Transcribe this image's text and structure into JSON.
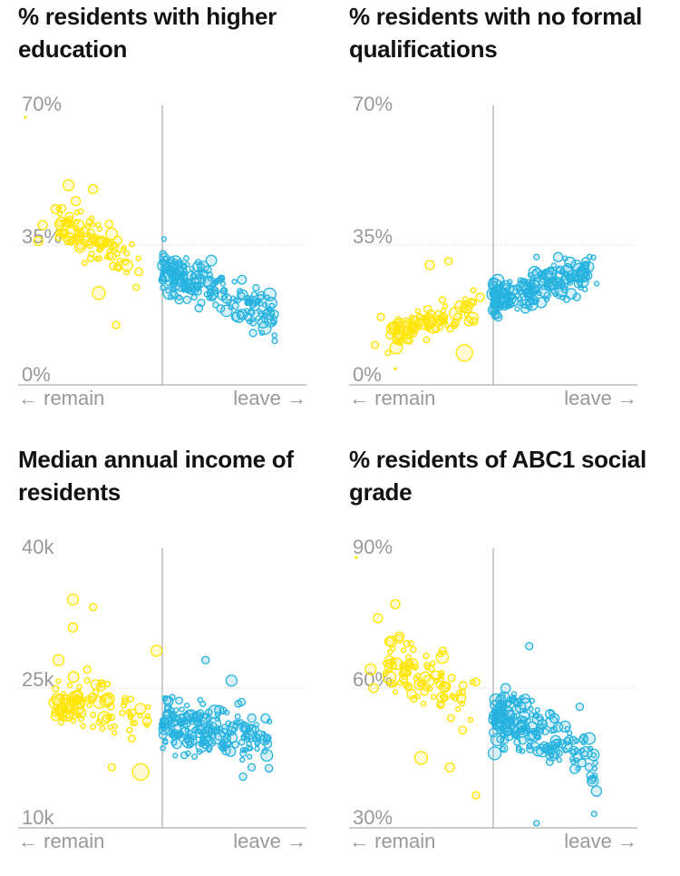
{
  "colors": {
    "remain": "#ffe500",
    "leave": "#27b3e0",
    "axis": "#999999",
    "grid": "#cfcfcf",
    "title": "#121212",
    "label": "#999999"
  },
  "axis_labels": {
    "left_arrow": "←",
    "remain": "remain",
    "leave": "leave",
    "right_arrow": "→"
  },
  "chart_data": [
    {
      "type": "scatter",
      "title": "% residents with higher education",
      "xlabel": "remain ← → leave",
      "ylabel": "% residents with higher education",
      "ylim": [
        0,
        70
      ],
      "yticks": [
        {
          "value": 70,
          "label": "70%"
        },
        {
          "value": 35,
          "label": "35%"
        },
        {
          "value": 0,
          "label": "0%"
        }
      ],
      "divider_x": 0,
      "xlim": [
        -1,
        1
      ],
      "seed": 11,
      "trend": {
        "slope": -15,
        "intercept": 29,
        "spread": 4.5
      },
      "clusters": [
        {
          "series": "remain",
          "count": 95,
          "x_range": [
            -0.72,
            -0.02
          ],
          "x_skew": 0.55
        },
        {
          "series": "leave",
          "count": 210,
          "x_range": [
            0.0,
            0.78
          ],
          "x_skew": 1.6
        }
      ],
      "outliers": [
        {
          "series": "remain",
          "x": -0.95,
          "y": 67,
          "size": 1
        },
        {
          "series": "remain",
          "x": -0.65,
          "y": 50,
          "size": 6
        },
        {
          "series": "remain",
          "x": -0.48,
          "y": 49,
          "size": 5
        },
        {
          "series": "remain",
          "x": -0.6,
          "y": 46,
          "size": 5
        },
        {
          "series": "remain",
          "x": -0.74,
          "y": 44,
          "size": 5
        },
        {
          "series": "remain",
          "x": -0.83,
          "y": 40,
          "size": 5
        },
        {
          "series": "remain",
          "x": -0.86,
          "y": 36,
          "size": 5
        },
        {
          "series": "remain",
          "x": -0.42,
          "y": 36,
          "size": 4
        },
        {
          "series": "remain",
          "x": -0.44,
          "y": 23,
          "size": 7
        },
        {
          "series": "remain",
          "x": -0.32,
          "y": 15,
          "size": 4
        },
        {
          "series": "leave",
          "x": 0.05,
          "y": 23,
          "size": 7
        },
        {
          "series": "leave",
          "x": 0.63,
          "y": 13,
          "size": 4
        },
        {
          "series": "leave",
          "x": 0.78,
          "y": 11,
          "size": 3
        }
      ]
    },
    {
      "type": "scatter",
      "title": "% residents with no formal qualifications",
      "xlabel": "remain ← → leave",
      "ylabel": "% residents with no formal qualifications",
      "ylim": [
        0,
        70
      ],
      "yticks": [
        {
          "value": 70,
          "label": "70%"
        },
        {
          "value": 35,
          "label": "35%"
        },
        {
          "value": 0,
          "label": "0%"
        }
      ],
      "divider_x": 0,
      "xlim": [
        -1,
        1
      ],
      "seed": 23,
      "trend": {
        "slope": 11,
        "intercept": 21,
        "spread": 3.5
      },
      "clusters": [
        {
          "series": "remain",
          "count": 95,
          "x_range": [
            -0.72,
            -0.02
          ],
          "x_skew": 0.55
        },
        {
          "series": "leave",
          "count": 210,
          "x_range": [
            0.0,
            0.72
          ],
          "x_skew": 1.5
        }
      ],
      "outliers": [
        {
          "series": "remain",
          "x": -0.82,
          "y": 10,
          "size": 4
        },
        {
          "series": "remain",
          "x": -0.73,
          "y": 8,
          "size": 3
        },
        {
          "series": "remain",
          "x": -0.68,
          "y": 4,
          "size": 1
        },
        {
          "series": "remain",
          "x": -0.2,
          "y": 8,
          "size": 9
        },
        {
          "series": "remain",
          "x": -0.44,
          "y": 30,
          "size": 5
        },
        {
          "series": "remain",
          "x": -0.31,
          "y": 31,
          "size": 4
        },
        {
          "series": "remain",
          "x": -0.78,
          "y": 17,
          "size": 4
        },
        {
          "series": "leave",
          "x": 0.01,
          "y": 25,
          "size": 7
        },
        {
          "series": "leave",
          "x": 0.45,
          "y": 32,
          "size": 5
        },
        {
          "series": "leave",
          "x": 0.64,
          "y": 30,
          "size": 4
        },
        {
          "series": "leave",
          "x": 0.3,
          "y": 32,
          "size": 3
        },
        {
          "series": "leave",
          "x": 0.58,
          "y": 22,
          "size": 4
        }
      ]
    },
    {
      "type": "scatter",
      "title": "Median annual income of residents",
      "xlabel": "remain ← → leave",
      "ylabel": "Median annual income of residents",
      "ylim": [
        10000,
        40000
      ],
      "yticks": [
        {
          "value": 40000,
          "label": "40k"
        },
        {
          "value": 25000,
          "label": "25k"
        },
        {
          "value": 10000,
          "label": "10k"
        }
      ],
      "divider_x": 0,
      "xlim": [
        -1,
        1
      ],
      "seed": 37,
      "trend": {
        "slope": -3000,
        "intercept": 21500,
        "spread": 2200
      },
      "clusters": [
        {
          "series": "remain",
          "count": 95,
          "x_range": [
            -0.75,
            -0.02
          ],
          "x_skew": 0.55
        },
        {
          "series": "leave",
          "count": 210,
          "x_range": [
            0.0,
            0.75
          ],
          "x_skew": 1.5
        }
      ],
      "outliers": [
        {
          "series": "remain",
          "x": -0.62,
          "y": 34500,
          "size": 6
        },
        {
          "series": "remain",
          "x": -0.48,
          "y": 33700,
          "size": 4
        },
        {
          "series": "remain",
          "x": -0.62,
          "y": 31500,
          "size": 5
        },
        {
          "series": "remain",
          "x": -0.72,
          "y": 28000,
          "size": 6
        },
        {
          "series": "remain",
          "x": -0.52,
          "y": 27000,
          "size": 4
        },
        {
          "series": "remain",
          "x": -0.6,
          "y": 24000,
          "size": 7
        },
        {
          "series": "remain",
          "x": -0.42,
          "y": 25500,
          "size": 4
        },
        {
          "series": "remain",
          "x": -0.35,
          "y": 16500,
          "size": 4
        },
        {
          "series": "remain",
          "x": -0.15,
          "y": 16000,
          "size": 9
        },
        {
          "series": "remain",
          "x": -0.04,
          "y": 29000,
          "size": 6
        },
        {
          "series": "leave",
          "x": 0.3,
          "y": 28000,
          "size": 4
        },
        {
          "series": "leave",
          "x": 0.48,
          "y": 25800,
          "size": 6
        },
        {
          "series": "leave",
          "x": 0.55,
          "y": 23500,
          "size": 4
        },
        {
          "series": "leave",
          "x": 0.62,
          "y": 16500,
          "size": 4
        },
        {
          "series": "leave",
          "x": 0.56,
          "y": 15500,
          "size": 4
        }
      ]
    },
    {
      "type": "scatter",
      "title": "% residents of ABC1 social grade",
      "xlabel": "remain ← → leave",
      "ylabel": "% residents of ABC1 social grade",
      "ylim": [
        30,
        90
      ],
      "yticks": [
        {
          "value": 90,
          "label": "90%"
        },
        {
          "value": 60,
          "label": "60%"
        },
        {
          "value": 30,
          "label": "30%"
        }
      ],
      "divider_x": 0,
      "xlim": [
        -1,
        1
      ],
      "seed": 53,
      "trend": {
        "slope": -15,
        "intercept": 55,
        "spread": 5
      },
      "clusters": [
        {
          "series": "remain",
          "count": 95,
          "x_range": [
            -0.75,
            -0.02
          ],
          "x_skew": 0.55
        },
        {
          "series": "leave",
          "count": 210,
          "x_range": [
            0.0,
            0.72
          ],
          "x_skew": 1.5
        }
      ],
      "outliers": [
        {
          "series": "remain",
          "x": -0.95,
          "y": 88,
          "size": 1
        },
        {
          "series": "remain",
          "x": -0.68,
          "y": 78,
          "size": 5
        },
        {
          "series": "remain",
          "x": -0.8,
          "y": 75,
          "size": 5
        },
        {
          "series": "remain",
          "x": -0.72,
          "y": 70,
          "size": 5
        },
        {
          "series": "remain",
          "x": -0.85,
          "y": 64,
          "size": 6
        },
        {
          "series": "remain",
          "x": -0.83,
          "y": 60,
          "size": 5
        },
        {
          "series": "remain",
          "x": -0.35,
          "y": 68,
          "size": 4
        },
        {
          "series": "remain",
          "x": -0.5,
          "y": 45,
          "size": 7
        },
        {
          "series": "remain",
          "x": -0.3,
          "y": 43,
          "size": 5
        },
        {
          "series": "remain",
          "x": -0.12,
          "y": 37,
          "size": 4
        },
        {
          "series": "leave",
          "x": 0.01,
          "y": 46,
          "size": 7
        },
        {
          "series": "leave",
          "x": 0.25,
          "y": 69,
          "size": 4
        },
        {
          "series": "leave",
          "x": 0.6,
          "y": 56,
          "size": 4
        },
        {
          "series": "leave",
          "x": 0.7,
          "y": 33,
          "size": 3
        },
        {
          "series": "leave",
          "x": 0.3,
          "y": 31,
          "size": 3
        }
      ]
    }
  ]
}
